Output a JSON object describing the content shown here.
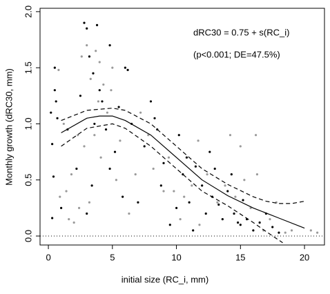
{
  "chart_data": {
    "type": "scatter",
    "xlabel": "initial size (RC_i, mm)",
    "ylabel": "Monthly growth (dRC30, mm)",
    "annotations": [
      "dRC30 = 0.75 + s(RC_i)",
      "(p<0.001; DE=47.5%)"
    ],
    "xlim": [
      -0.65,
      21.56
    ],
    "ylim": [
      -0.08,
      2.03
    ],
    "xticks": [
      0,
      5,
      10,
      15,
      20
    ],
    "yticks": [
      {
        "value": 0,
        "label": "0.0"
      },
      {
        "value": 0.5,
        "label": "0.5"
      },
      {
        "value": 1,
        "label": "1.0"
      },
      {
        "value": 1.5,
        "label": "1.5"
      },
      {
        "value": 2,
        "label": "2.0"
      }
    ],
    "hline": 0,
    "series": [
      {
        "mode": "points",
        "color": "#000000",
        "x": [
          0.2,
          0.3,
          0.3,
          0.5,
          0.5,
          0.6,
          0.4,
          0.7,
          1,
          2.8,
          3,
          3.8,
          3.2,
          3.5,
          4,
          4.2,
          3.6,
          4.5,
          3,
          3.4,
          4.8,
          5.2,
          5.5,
          6,
          6.2,
          6.5,
          7,
          7.5,
          8,
          8.3,
          8.5,
          9,
          9.5,
          10,
          10.2,
          10.5,
          10.8,
          11,
          11.3,
          11.5,
          12,
          12.3,
          12.8,
          13,
          13.3,
          13.6,
          14,
          14.3,
          14.5,
          15,
          15.2,
          15.5,
          16,
          16.5,
          17,
          17.5,
          18,
          1.5,
          2.2,
          2.5,
          4.8,
          5.8,
          8.8,
          12.6,
          14.8
        ],
        "values": [
          1.1,
          0.82,
          0.16,
          1.5,
          1.3,
          1.2,
          0.53,
          1.05,
          0.25,
          1.9,
          1.85,
          1.88,
          1.6,
          1.45,
          1.3,
          1.2,
          1.0,
          0.95,
          0.2,
          0.45,
          0.6,
          0.75,
          1.15,
          1.5,
          1.48,
          1.0,
          0.3,
          0.8,
          1.2,
          1.05,
          0.95,
          0.65,
          0.1,
          0.25,
          0.9,
          0.55,
          0.7,
          0.3,
          0.05,
          0.62,
          0.45,
          0.2,
          0.35,
          0.6,
          0.28,
          0.15,
          0.4,
          0.55,
          0.2,
          0.1,
          0.32,
          0.15,
          0.05,
          0.12,
          0.2,
          0.08,
          0.03,
          0.95,
          0.6,
          1.25,
          1.7,
          0.35,
          0.45,
          0.75,
          0.12
        ]
      },
      {
        "mode": "points",
        "color": "#9a9a9a",
        "x": [
          0.8,
          1.2,
          1.4,
          1.6,
          2,
          2.3,
          2.6,
          3,
          3.3,
          3.7,
          4,
          4.3,
          4.6,
          2.8,
          3.2,
          3.6,
          4.1,
          4.9,
          5.3,
          5.6,
          6.3,
          6.8,
          7.2,
          7.8,
          8.2,
          9,
          9.4,
          10.3,
          10.6,
          11.2,
          11.8,
          12.4,
          13.2,
          13.8,
          14.2,
          14.6,
          15.3,
          15.8,
          16.3,
          16.8,
          17.3,
          17.8,
          18.5,
          19,
          20.5,
          21,
          16.2,
          15,
          1.8,
          2.4,
          0.9,
          5,
          3.9,
          11.7,
          9.8
        ],
        "values": [
          1.48,
          1.0,
          0.4,
          0.15,
          0.12,
          0.9,
          1.6,
          1.7,
          1.4,
          1.65,
          1.55,
          1.35,
          1.1,
          0.8,
          0.3,
          0.9,
          0.7,
          1.3,
          0.5,
          0.85,
          0.2,
          0.55,
          1.1,
          0.9,
          0.6,
          0.4,
          0.7,
          0.15,
          0.35,
          0.45,
          0.1,
          0.55,
          0.3,
          0.45,
          0.9,
          0.35,
          0.5,
          0.25,
          0.55,
          0.05,
          0.15,
          0.3,
          0.03,
          0.05,
          0.05,
          0.03,
          0.9,
          0.8,
          0.55,
          0.25,
          0.35,
          1.5,
          1.2,
          0.85,
          0.4
        ]
      },
      {
        "mode": "line",
        "dash": false,
        "color": "#000000",
        "x": [
          1,
          3,
          4,
          5,
          6,
          8,
          10,
          12,
          14,
          16,
          18,
          20
        ],
        "values": [
          0.92,
          1.05,
          1.07,
          1.07,
          1.03,
          0.9,
          0.7,
          0.5,
          0.36,
          0.25,
          0.16,
          0.07
        ]
      },
      {
        "mode": "line",
        "dash": true,
        "color": "#000000",
        "x": [
          1,
          3,
          5,
          6,
          8,
          10,
          12,
          14,
          16,
          17,
          18,
          19,
          20
        ],
        "values": [
          1.03,
          1.12,
          1.14,
          1.12,
          1.0,
          0.8,
          0.6,
          0.46,
          0.35,
          0.31,
          0.29,
          0.29,
          0.31
        ]
      },
      {
        "mode": "line",
        "dash": true,
        "color": "#000000",
        "x": [
          1,
          3,
          5,
          6,
          8,
          10,
          12,
          14,
          16,
          17,
          18.3
        ],
        "values": [
          0.8,
          0.96,
          1.0,
          0.96,
          0.8,
          0.6,
          0.4,
          0.27,
          0.12,
          0.04,
          -0.06
        ]
      }
    ]
  }
}
